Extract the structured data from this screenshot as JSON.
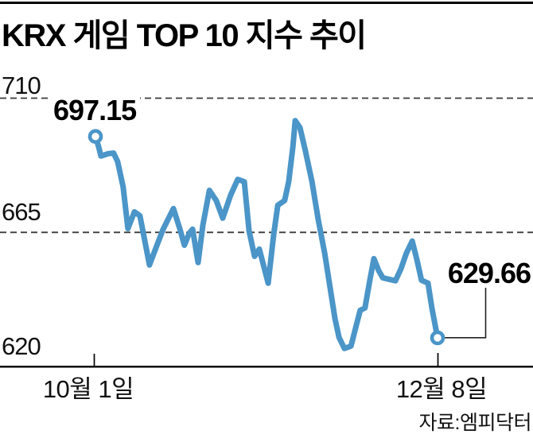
{
  "chart_data": {
    "type": "line",
    "title": "KRX 게임 TOP 10 지수 추이",
    "source": "자료:엠피닥터",
    "ylim": [
      620,
      710
    ],
    "grid": "horizontal dashed gridlines at 710 and 665, solid baseline axis at 620, no vertical grid",
    "legend_position": "none",
    "y_ticks": [
      {
        "label": "710",
        "value": 710,
        "style": "dashed"
      },
      {
        "label": "665",
        "value": 665,
        "style": "dashed"
      },
      {
        "label": "620",
        "value": 620,
        "style": "solid-axis"
      }
    ],
    "x_ticks": [
      {
        "label": "10월 1일",
        "position_frac": 0.0
      },
      {
        "label": "12월 8일",
        "position_frac": 1.0
      }
    ],
    "annotations": {
      "start": {
        "label": "697.15",
        "value": 697.15,
        "marker": "open-circle"
      },
      "end": {
        "label": "629.66",
        "value": 629.66,
        "marker": "open-circle",
        "callout": "elbow-line"
      }
    },
    "series": [
      {
        "color": "#4b95c8",
        "points": [
          [
            0.0,
            697.15
          ],
          [
            0.009,
            693.8
          ],
          [
            0.016,
            690.6
          ],
          [
            0.037,
            691.4
          ],
          [
            0.053,
            691.6
          ],
          [
            0.065,
            688.7
          ],
          [
            0.081,
            680.2
          ],
          [
            0.095,
            666.3
          ],
          [
            0.114,
            671.9
          ],
          [
            0.13,
            670.6
          ],
          [
            0.158,
            654.1
          ],
          [
            0.179,
            660.5
          ],
          [
            0.198,
            666.1
          ],
          [
            0.228,
            673.0
          ],
          [
            0.247,
            666.1
          ],
          [
            0.26,
            660.7
          ],
          [
            0.274,
            664.7
          ],
          [
            0.284,
            666.1
          ],
          [
            0.3,
            654.9
          ],
          [
            0.314,
            667.4
          ],
          [
            0.333,
            679.1
          ],
          [
            0.353,
            675.7
          ],
          [
            0.372,
            669.8
          ],
          [
            0.395,
            677.5
          ],
          [
            0.416,
            682.8
          ],
          [
            0.435,
            682.0
          ],
          [
            0.449,
            665.5
          ],
          [
            0.465,
            657.0
          ],
          [
            0.479,
            659.4
          ],
          [
            0.505,
            648.0
          ],
          [
            0.521,
            664.2
          ],
          [
            0.533,
            674.1
          ],
          [
            0.553,
            675.7
          ],
          [
            0.565,
            682.0
          ],
          [
            0.577,
            693.5
          ],
          [
            0.584,
            702.5
          ],
          [
            0.598,
            700.1
          ],
          [
            0.614,
            692.2
          ],
          [
            0.633,
            682.0
          ],
          [
            0.651,
            669.5
          ],
          [
            0.67,
            658.1
          ],
          [
            0.686,
            646.4
          ],
          [
            0.7,
            636.2
          ],
          [
            0.712,
            629.8
          ],
          [
            0.728,
            626.1
          ],
          [
            0.747,
            626.9
          ],
          [
            0.763,
            634.1
          ],
          [
            0.774,
            638.9
          ],
          [
            0.788,
            639.7
          ],
          [
            0.802,
            649.0
          ],
          [
            0.814,
            656.2
          ],
          [
            0.828,
            652.2
          ],
          [
            0.84,
            649.8
          ],
          [
            0.858,
            649.3
          ],
          [
            0.877,
            648.8
          ],
          [
            0.893,
            652.8
          ],
          [
            0.909,
            658.1
          ],
          [
            0.926,
            662.1
          ],
          [
            0.94,
            655.7
          ],
          [
            0.953,
            649.0
          ],
          [
            0.972,
            648.0
          ],
          [
            0.984,
            639.4
          ],
          [
            1.0,
            629.66
          ]
        ]
      }
    ]
  },
  "colors": {
    "line": "#4b95c8",
    "text": "#000000",
    "grid": "#3a3a3a",
    "axis": "#000000",
    "background": "#ffffff"
  }
}
